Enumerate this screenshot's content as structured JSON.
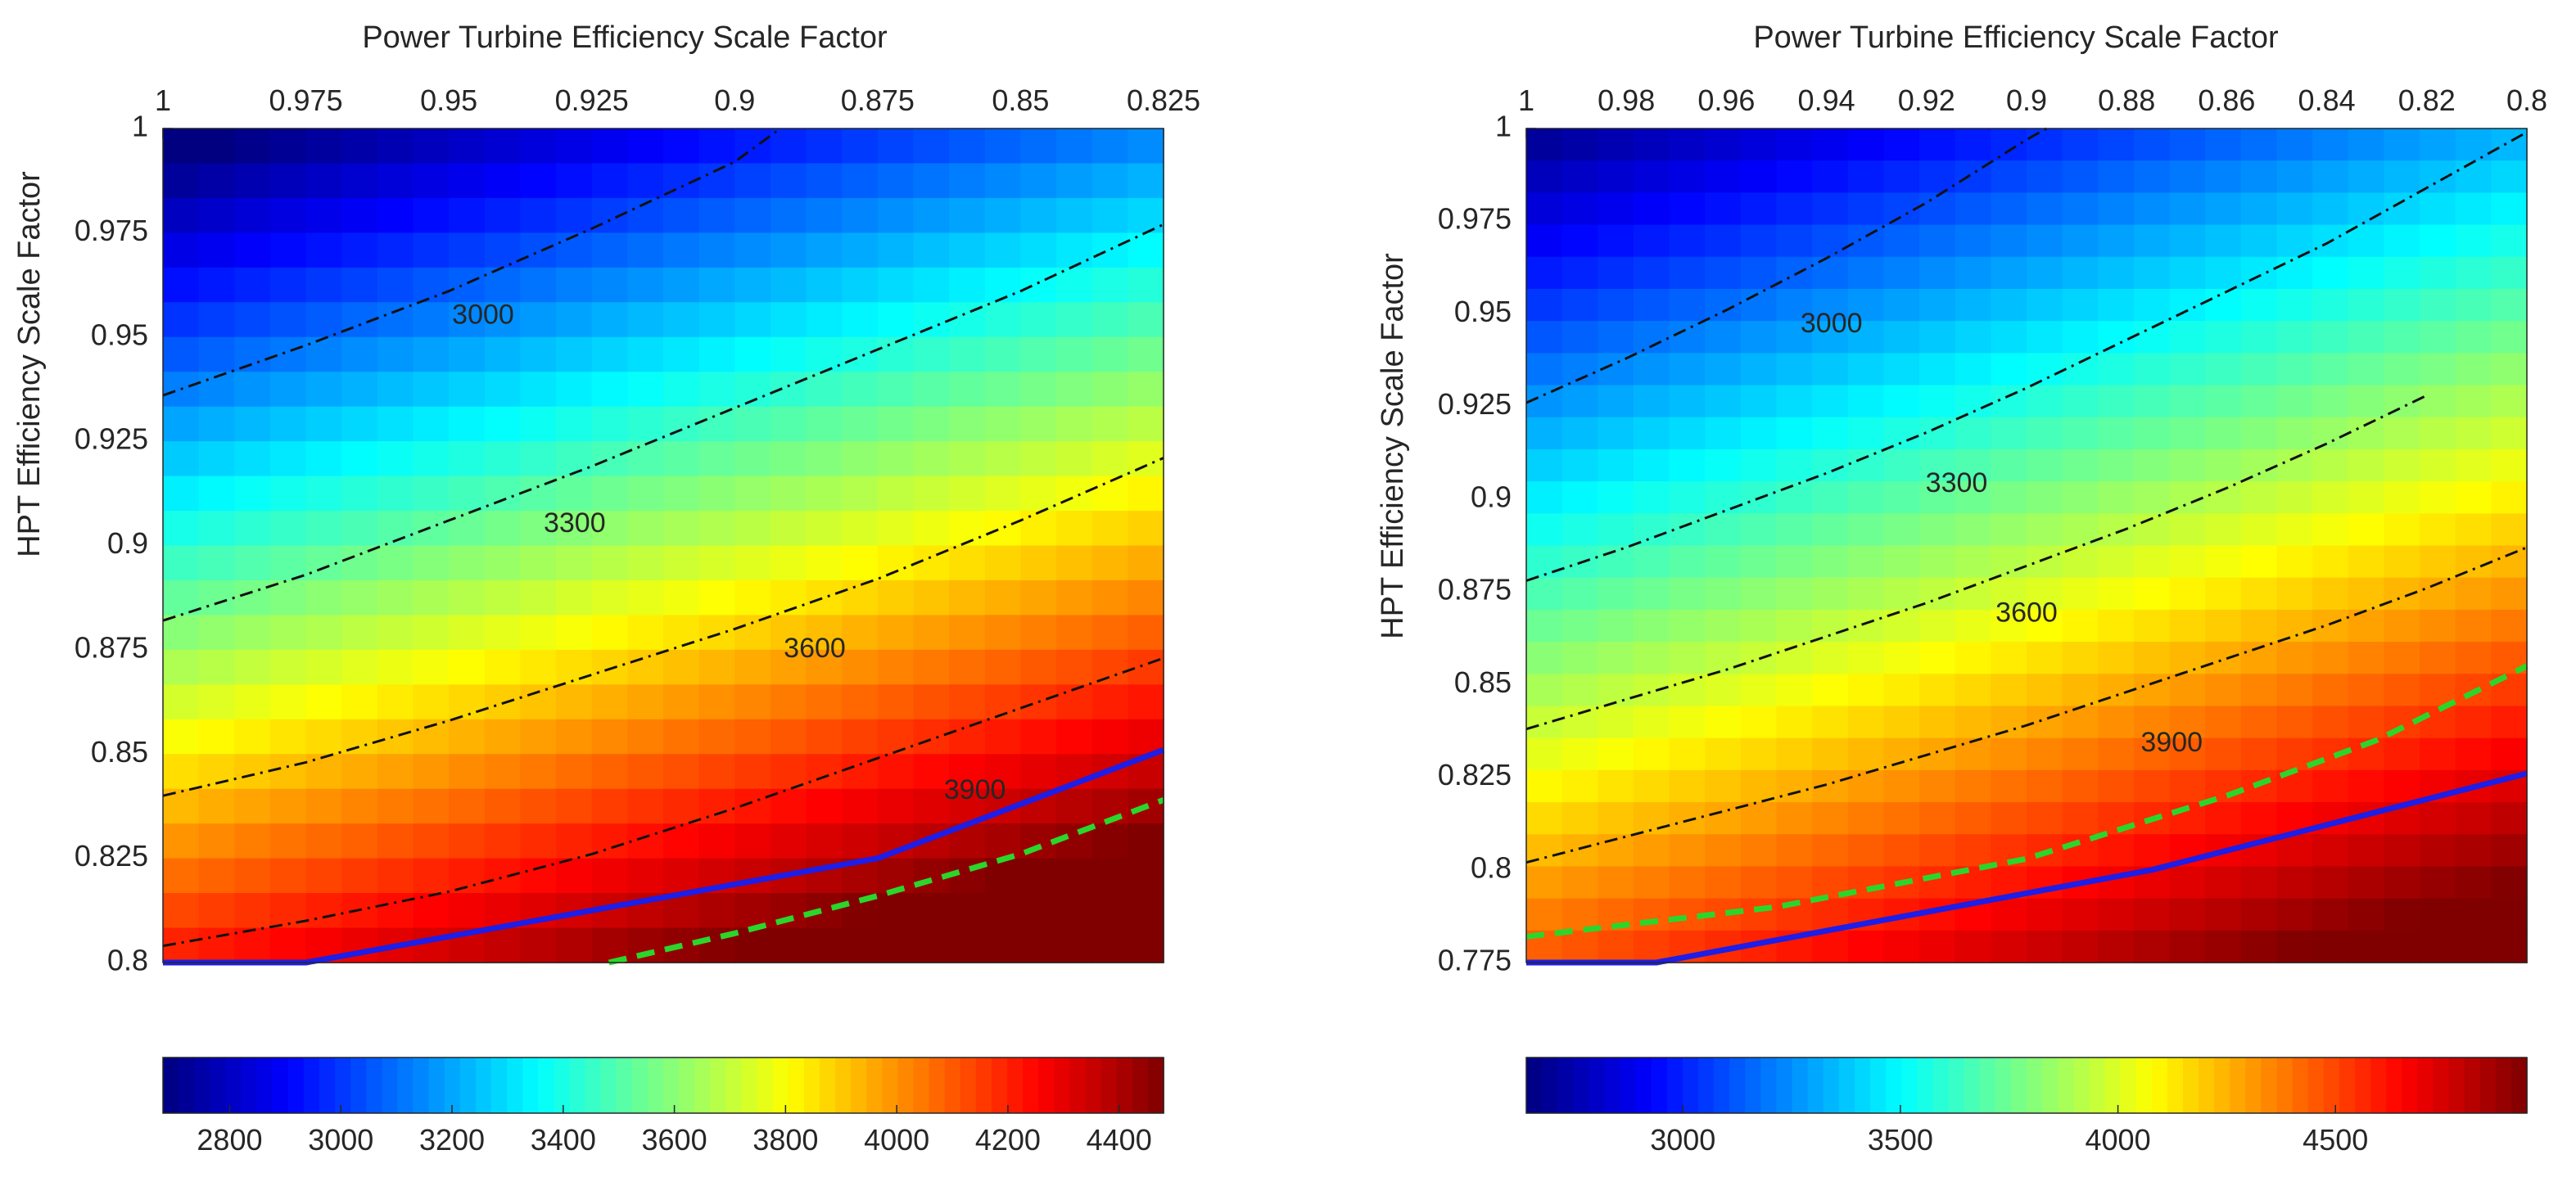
{
  "chart_data": [
    {
      "type": "heatmap",
      "title": "",
      "xlabel": "Power Turbine Efficiency Scale Factor",
      "ylabel": "HPT Efficiency Scale Factor",
      "x_axis_location": "top",
      "x_direction": "reversed",
      "xlim": [
        0.825,
        1.0
      ],
      "ylim": [
        0.8,
        1.0
      ],
      "xticks": [
        1.0,
        0.975,
        0.95,
        0.925,
        0.9,
        0.875,
        0.85,
        0.825
      ],
      "xtick_labels": [
        "1",
        "0.975",
        "0.95",
        "0.925",
        "0.9",
        "0.875",
        "0.85",
        "0.825"
      ],
      "yticks": [
        1.0,
        0.975,
        0.95,
        0.925,
        0.9,
        0.875,
        0.85,
        0.825,
        0.8
      ],
      "ytick_labels": [
        "1",
        "0.975",
        "0.95",
        "0.925",
        "0.9",
        "0.875",
        "0.85",
        "0.825",
        "0.8"
      ],
      "grid": {
        "nx": 28,
        "ny": 24
      },
      "field_model": {
        "base": 2620,
        "a_ptdrop": 2900,
        "b_hptdrop": 8000
      },
      "colormap": "jet",
      "colorbar": {
        "location": "bottom",
        "clim": [
          2680,
          4480
        ],
        "ticks": [
          2800,
          3000,
          3200,
          3400,
          3600,
          3800,
          4000,
          4200,
          4400
        ],
        "tick_labels": [
          "2800",
          "3000",
          "3200",
          "3400",
          "3600",
          "3800",
          "4000",
          "4200",
          "4400"
        ]
      },
      "contour_lines": [
        {
          "label": "3000",
          "label_at": [
            0.944,
            0.955
          ],
          "points": [
            [
              1.0,
              0.936
            ],
            [
              0.975,
              0.948
            ],
            [
              0.95,
              0.961
            ],
            [
              0.925,
              0.976
            ],
            [
              0.9,
              0.992
            ],
            [
              0.892,
              1.0
            ]
          ]
        },
        {
          "label": "3300",
          "label_at": [
            0.928,
            0.905
          ],
          "points": [
            [
              1.0,
              0.882
            ],
            [
              0.975,
              0.893
            ],
            [
              0.95,
              0.906
            ],
            [
              0.925,
              0.919
            ],
            [
              0.9,
              0.933
            ],
            [
              0.875,
              0.947
            ],
            [
              0.85,
              0.961
            ],
            [
              0.825,
              0.977
            ]
          ]
        },
        {
          "label": "3600",
          "label_at": [
            0.886,
            0.875
          ],
          "points": [
            [
              1.0,
              0.84
            ],
            [
              0.975,
              0.848
            ],
            [
              0.95,
              0.858
            ],
            [
              0.925,
              0.869
            ],
            [
              0.9,
              0.88
            ],
            [
              0.875,
              0.892
            ],
            [
              0.85,
              0.906
            ],
            [
              0.825,
              0.921
            ]
          ]
        },
        {
          "label": "3900",
          "label_at": [
            0.858,
            0.841
          ],
          "points": [
            [
              1.0,
              0.804
            ],
            [
              0.975,
              0.81
            ],
            [
              0.95,
              0.817
            ],
            [
              0.925,
              0.826
            ],
            [
              0.9,
              0.837
            ],
            [
              0.875,
              0.849
            ],
            [
              0.85,
              0.861
            ],
            [
              0.825,
              0.873
            ]
          ]
        }
      ],
      "boundary_solid": {
        "color": "#1e1ee6",
        "points": [
          [
            1.0,
            0.8
          ],
          [
            0.975,
            0.8
          ],
          [
            0.875,
            0.825
          ],
          [
            0.825,
            0.851
          ]
        ]
      },
      "boundary_dashed": {
        "color": "#2bd62b",
        "points": [
          [
            0.922,
            0.8
          ],
          [
            0.9,
            0.807
          ],
          [
            0.875,
            0.816
          ],
          [
            0.85,
            0.826
          ],
          [
            0.825,
            0.839
          ]
        ]
      }
    },
    {
      "type": "heatmap",
      "title": "",
      "xlabel": "Power Turbine Efficiency Scale Factor",
      "ylabel": "HPT Efficiency Scale Factor",
      "x_axis_location": "top",
      "x_direction": "reversed",
      "xlim": [
        0.8,
        1.0
      ],
      "ylim": [
        0.775,
        1.0
      ],
      "xticks": [
        1.0,
        0.98,
        0.96,
        0.94,
        0.92,
        0.9,
        0.88,
        0.86,
        0.84,
        0.82,
        0.8
      ],
      "xtick_labels": [
        "1",
        "0.98",
        "0.96",
        "0.94",
        "0.92",
        "0.9",
        "0.88",
        "0.86",
        "0.84",
        "0.82",
        "0.8"
      ],
      "yticks": [
        1.0,
        0.975,
        0.95,
        0.925,
        0.9,
        0.875,
        0.85,
        0.825,
        0.8,
        0.775
      ],
      "ytick_labels": [
        "1",
        "0.975",
        "0.95",
        "0.925",
        "0.9",
        "0.875",
        "0.85",
        "0.825",
        "0.8",
        "0.775"
      ],
      "grid": {
        "nx": 28,
        "ny": 26
      },
      "field_model": {
        "base": 2660,
        "a_ptdrop": 3300,
        "b_hptdrop": 8000
      },
      "colormap": "jet",
      "colorbar": {
        "location": "bottom",
        "clim": [
          2640,
          4940
        ],
        "ticks": [
          3000,
          3500,
          4000,
          4500
        ],
        "tick_labels": [
          "3000",
          "3500",
          "4000",
          "4500"
        ]
      },
      "contour_lines": [
        {
          "label": "3000",
          "label_at": [
            0.939,
            0.947
          ],
          "points": [
            [
              1.0,
              0.926
            ],
            [
              0.98,
              0.938
            ],
            [
              0.96,
              0.951
            ],
            [
              0.94,
              0.965
            ],
            [
              0.92,
              0.98
            ],
            [
              0.9,
              0.997
            ],
            [
              0.896,
              1.0
            ]
          ]
        },
        {
          "label": "3300",
          "label_at": [
            0.914,
            0.904
          ],
          "points": [
            [
              1.0,
              0.878
            ],
            [
              0.98,
              0.887
            ],
            [
              0.96,
              0.897
            ],
            [
              0.94,
              0.907
            ],
            [
              0.92,
              0.918
            ],
            [
              0.9,
              0.93
            ],
            [
              0.88,
              0.943
            ],
            [
              0.86,
              0.956
            ],
            [
              0.84,
              0.969
            ],
            [
              0.82,
              0.984
            ],
            [
              0.8,
              0.999
            ]
          ]
        },
        {
          "label": "3600",
          "label_at": [
            0.9,
            0.869
          ],
          "points": [
            [
              1.0,
              0.838
            ],
            [
              0.98,
              0.846
            ],
            [
              0.96,
              0.854
            ],
            [
              0.94,
              0.863
            ],
            [
              0.92,
              0.872
            ],
            [
              0.9,
              0.882
            ],
            [
              0.88,
              0.892
            ],
            [
              0.86,
              0.903
            ],
            [
              0.84,
              0.915
            ],
            [
              0.82,
              0.928
            ]
          ]
        },
        {
          "label": "3900",
          "label_at": [
            0.871,
            0.834
          ],
          "points": [
            [
              1.0,
              0.802
            ],
            [
              0.98,
              0.809
            ],
            [
              0.96,
              0.816
            ],
            [
              0.94,
              0.823
            ],
            [
              0.92,
              0.831
            ],
            [
              0.9,
              0.839
            ],
            [
              0.88,
              0.848
            ],
            [
              0.86,
              0.857
            ],
            [
              0.84,
              0.866
            ],
            [
              0.82,
              0.876
            ],
            [
              0.8,
              0.887
            ]
          ]
        }
      ],
      "boundary_solid": {
        "color": "#1e1ee6",
        "points": [
          [
            1.0,
            0.775
          ],
          [
            0.974,
            0.775
          ],
          [
            0.875,
            0.8
          ],
          [
            0.8,
            0.826
          ]
        ]
      },
      "boundary_dashed": {
        "color": "#2bd62b",
        "points": [
          [
            1.0,
            0.782
          ],
          [
            0.95,
            0.79
          ],
          [
            0.9,
            0.803
          ],
          [
            0.86,
            0.82
          ],
          [
            0.83,
            0.835
          ],
          [
            0.8,
            0.855
          ]
        ]
      }
    }
  ]
}
